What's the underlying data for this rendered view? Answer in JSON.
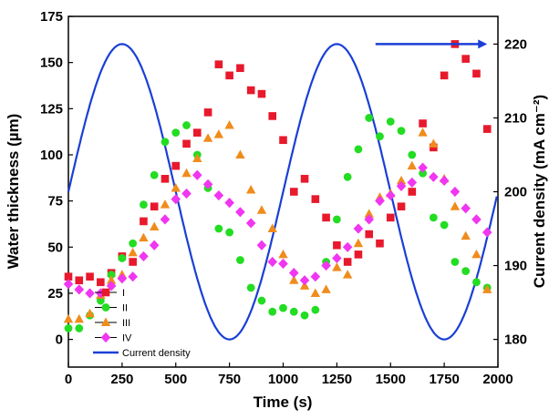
{
  "chart_data": {
    "type": "scatter",
    "title": "",
    "xlabel": "Time (s)",
    "ylabel": "Water thickness (µm)",
    "y2label": "Current density (mA cm⁻²)",
    "xlim": [
      0,
      2000
    ],
    "ylim": [
      -15,
      175
    ],
    "y2lim": [
      176.25,
      223.75
    ],
    "xticks": [
      "0",
      "250",
      "500",
      "750",
      "1000",
      "1250",
      "1500",
      "1750",
      "2000"
    ],
    "yticks": [
      "0",
      "25",
      "50",
      "75",
      "100",
      "125",
      "150",
      "175"
    ],
    "y2ticks": [
      "180",
      "190",
      "200",
      "210",
      "220"
    ],
    "grid": false,
    "legend_position": "bottom-left",
    "series": [
      {
        "name": "I",
        "marker": "square",
        "color": "#e8192c",
        "axis": "left",
        "x": [
          0,
          50,
          100,
          150,
          200,
          250,
          300,
          350,
          400,
          450,
          500,
          550,
          600,
          650,
          700,
          750,
          800,
          850,
          900,
          950,
          1000,
          1050,
          1100,
          1150,
          1200,
          1250,
          1300,
          1350,
          1400,
          1450,
          1500,
          1550,
          1600,
          1650,
          1700,
          1750,
          1800,
          1850,
          1900,
          1950
        ],
        "values": [
          34,
          32,
          34,
          31,
          36,
          45,
          42,
          64,
          72,
          87,
          94,
          106,
          112,
          123,
          149,
          143,
          147,
          135,
          133,
          121,
          108,
          80,
          87,
          76,
          66,
          51,
          42,
          46,
          57,
          52,
          66,
          72,
          80,
          117,
          104,
          143,
          160,
          152,
          144,
          114
        ]
      },
      {
        "name": "II",
        "marker": "circle",
        "color": "#22dd22",
        "axis": "left",
        "x": [
          0,
          50,
          100,
          150,
          200,
          250,
          300,
          350,
          400,
          450,
          500,
          550,
          600,
          650,
          700,
          750,
          800,
          850,
          900,
          950,
          1000,
          1050,
          1100,
          1150,
          1200,
          1250,
          1300,
          1350,
          1400,
          1450,
          1500,
          1550,
          1600,
          1650,
          1700,
          1750,
          1800,
          1850,
          1900,
          1950
        ],
        "values": [
          6,
          6,
          13,
          21,
          35,
          44,
          52,
          73,
          89,
          107,
          112,
          116,
          100,
          82,
          60,
          58,
          43,
          28,
          21,
          15,
          17,
          15,
          13,
          16,
          42,
          65,
          88,
          103,
          120,
          110,
          118,
          113,
          100,
          90,
          66,
          62,
          42,
          37,
          31,
          28
        ]
      },
      {
        "name": "III",
        "marker": "triangle",
        "color": "#f08c1c",
        "axis": "left",
        "x": [
          0,
          50,
          100,
          150,
          200,
          250,
          300,
          350,
          400,
          450,
          500,
          550,
          600,
          650,
          700,
          750,
          800,
          850,
          900,
          950,
          1000,
          1050,
          1100,
          1150,
          1200,
          1250,
          1300,
          1350,
          1400,
          1450,
          1500,
          1550,
          1600,
          1650,
          1700,
          1750,
          1800,
          1850,
          1900,
          1950
        ],
        "values": [
          11,
          11,
          14,
          24,
          32,
          35,
          47,
          55,
          61,
          73,
          82,
          90,
          98,
          109,
          111,
          116,
          100,
          81,
          70,
          60,
          46,
          32,
          29,
          25,
          27,
          39,
          35,
          52,
          68,
          77,
          79,
          86,
          94,
          112,
          106,
          87,
          72,
          56,
          46,
          27
        ]
      },
      {
        "name": "IV",
        "marker": "diamond",
        "color": "#f036f0",
        "axis": "left",
        "x": [
          0,
          50,
          100,
          150,
          200,
          250,
          300,
          350,
          400,
          450,
          500,
          550,
          600,
          650,
          700,
          750,
          800,
          850,
          900,
          950,
          1000,
          1050,
          1100,
          1150,
          1200,
          1250,
          1300,
          1350,
          1400,
          1450,
          1500,
          1550,
          1600,
          1650,
          1700,
          1750,
          1800,
          1850,
          1900,
          1950
        ],
        "values": [
          30,
          27,
          25,
          25,
          29,
          33,
          34,
          45,
          51,
          65,
          76,
          79,
          89,
          84,
          78,
          74,
          69,
          63,
          51,
          42,
          41,
          36,
          32,
          34,
          40,
          44,
          50,
          60,
          65,
          75,
          78,
          83,
          85,
          93,
          88,
          86,
          80,
          71,
          65,
          58
        ]
      },
      {
        "name": "Current density",
        "style": "line",
        "color": "#1a3fd6",
        "axis": "right",
        "x_start": 0,
        "x_end": 1995,
        "baseline": 200,
        "amplitude": 20,
        "period": 1000,
        "peaks_at": [
          250,
          1250
        ],
        "troughs_at": [
          750,
          1750
        ]
      }
    ],
    "annotations": [
      {
        "type": "arrow",
        "direction": "right",
        "color": "#1a3fd6",
        "from": [
          1430,
          220
        ],
        "to": [
          1950,
          220
        ]
      }
    ]
  }
}
